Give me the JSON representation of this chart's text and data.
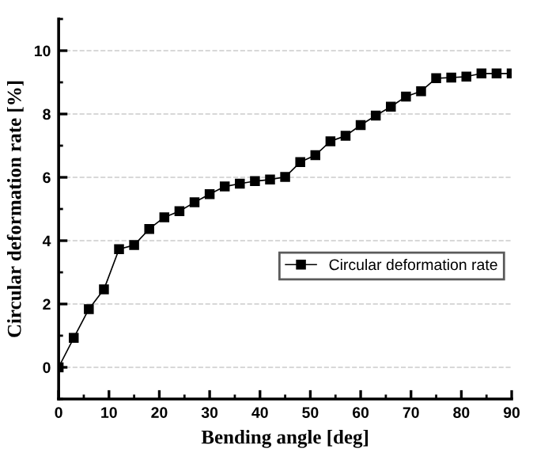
{
  "chart_data": {
    "type": "line",
    "xlabel": "Bending angle [deg]",
    "ylabel": "Circular deformation rate [%]",
    "x": [
      0,
      3,
      6,
      9,
      12,
      15,
      18,
      21,
      24,
      27,
      30,
      33,
      36,
      39,
      42,
      45,
      48,
      51,
      54,
      57,
      60,
      63,
      66,
      69,
      72,
      75,
      78,
      81,
      84,
      87,
      90
    ],
    "series": [
      {
        "name": "Circular deformation rate",
        "color": "#000000",
        "values": [
          0,
          0.93,
          1.84,
          2.46,
          3.73,
          3.86,
          4.37,
          4.74,
          4.93,
          5.21,
          5.47,
          5.71,
          5.8,
          5.88,
          5.93,
          6.01,
          6.48,
          6.7,
          7.14,
          7.31,
          7.65,
          7.95,
          8.23,
          8.55,
          8.72,
          9.13,
          9.15,
          9.18,
          9.28,
          9.28,
          9.28
        ]
      }
    ],
    "xlim": [
      0,
      90
    ],
    "ylim": [
      -1,
      11
    ],
    "xticks": [
      0,
      10,
      20,
      30,
      40,
      50,
      60,
      70,
      80,
      90
    ],
    "yticks": [
      0,
      2,
      4,
      6,
      8,
      10
    ],
    "grid": "y",
    "legend": "right",
    "marker": "square",
    "line_style": "solid"
  }
}
